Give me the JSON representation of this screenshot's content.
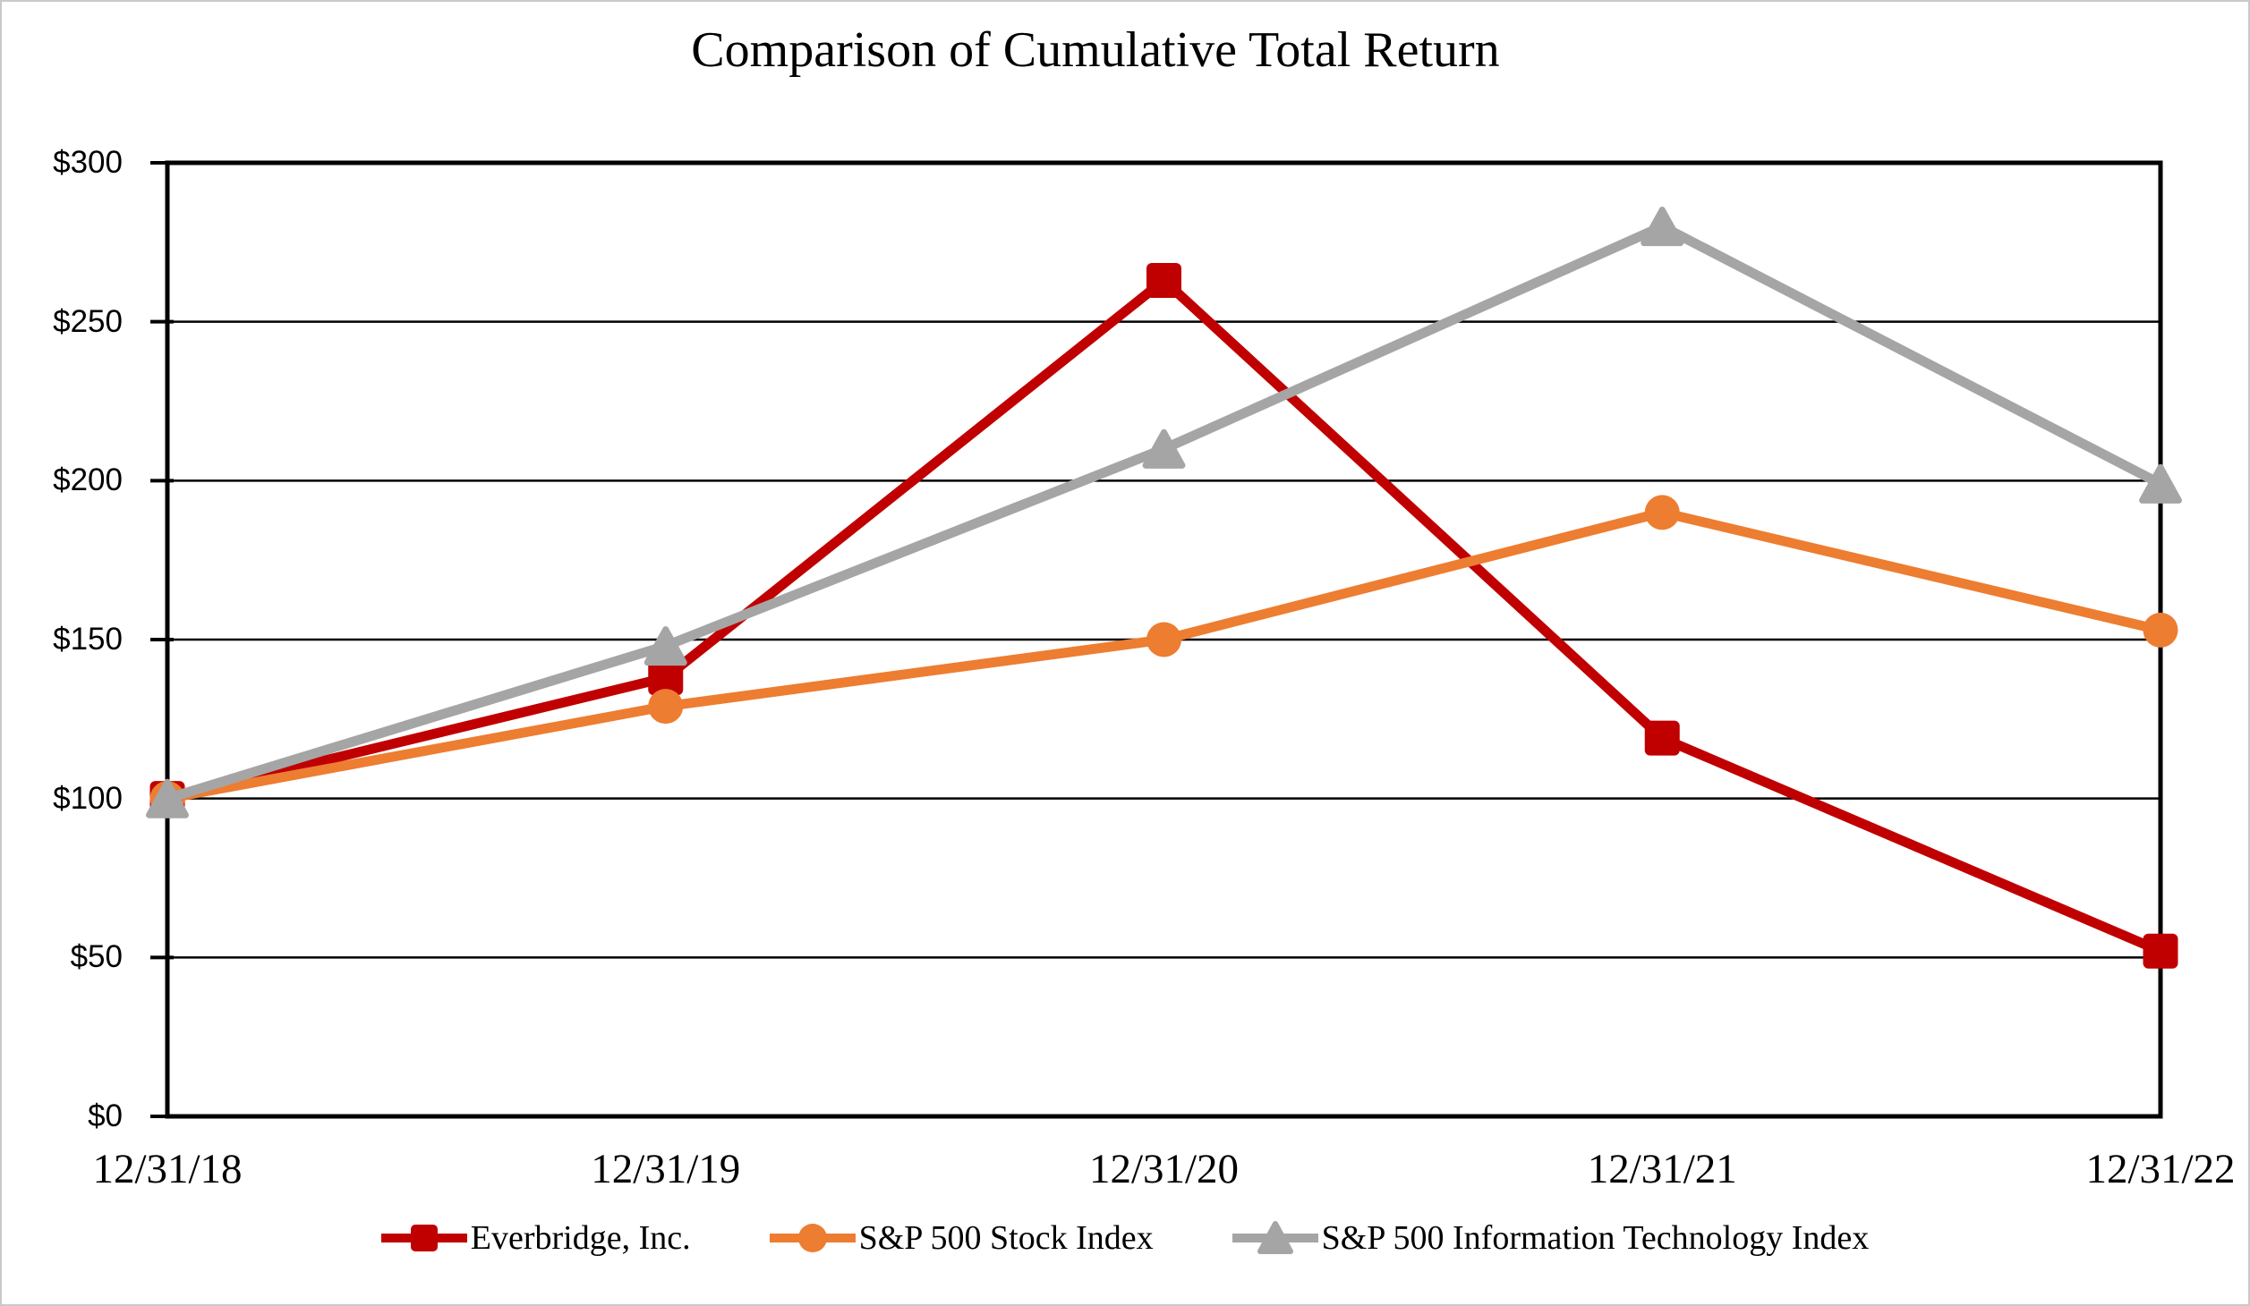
{
  "figure": {
    "background_color": "#ffffff",
    "border_color": "#c9c9c9",
    "text_color": "#000000",
    "gridline_color": "#000000",
    "axis_color": "#000000"
  },
  "chart_data": {
    "type": "line",
    "title": "Comparison of Cumulative Total Return",
    "categories": [
      "12/31/18",
      "12/31/19",
      "12/31/20",
      "12/31/21",
      "12/31/22"
    ],
    "series": [
      {
        "name": "Everbridge, Inc.",
        "color": "#C00000",
        "marker": "square",
        "values": [
          100,
          138,
          263,
          119,
          52
        ]
      },
      {
        "name": "S&P 500 Stock Index",
        "color": "#ED7D31",
        "marker": "circle",
        "values": [
          100,
          129,
          150,
          190,
          153
        ]
      },
      {
        "name": "S&P 500 Information Technology Index",
        "color": "#A5A5A5",
        "marker": "triangle",
        "values": [
          100,
          148,
          210,
          280,
          199
        ]
      }
    ],
    "ylim": [
      0,
      300
    ],
    "y_ticks": {
      "values": [
        0,
        50,
        100,
        150,
        200,
        250,
        300
      ],
      "labels": [
        "$0",
        "$50",
        "$100",
        "$150",
        "$200",
        "$250",
        "$300"
      ]
    },
    "grid": true,
    "legend_position": "bottom"
  }
}
